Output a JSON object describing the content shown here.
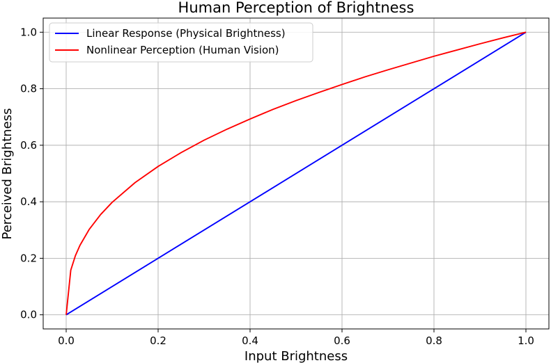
{
  "chart_data": {
    "type": "line",
    "title": "Human Perception of Brightness",
    "xlabel": "Input Brightness",
    "ylabel": "Perceived Brightness",
    "xlim": [
      -0.05,
      1.05
    ],
    "ylim": [
      -0.05,
      1.05
    ],
    "xticks": [
      0.0,
      0.2,
      0.4,
      0.6,
      0.8,
      1.0
    ],
    "yticks": [
      0.0,
      0.2,
      0.4,
      0.6,
      0.8,
      1.0
    ],
    "xtick_labels": [
      "0.0",
      "0.2",
      "0.4",
      "0.6",
      "0.8",
      "1.0"
    ],
    "ytick_labels": [
      "0.0",
      "0.2",
      "0.4",
      "0.6",
      "0.8",
      "1.0"
    ],
    "grid": true,
    "legend_position": "top-left",
    "series": [
      {
        "name": "Linear Response (Physical Brightness)",
        "color": "#0000ff",
        "x": [
          0.0,
          1.0
        ],
        "y": [
          0.0,
          1.0
        ]
      },
      {
        "name": "Nonlinear Perception (Human Vision)",
        "color": "#ff0000",
        "x": [
          0.0,
          0.01,
          0.02,
          0.03,
          0.05,
          0.075,
          0.1,
          0.15,
          0.2,
          0.25,
          0.3,
          0.35,
          0.4,
          0.45,
          0.5,
          0.55,
          0.6,
          0.65,
          0.7,
          0.75,
          0.8,
          0.85,
          0.9,
          0.95,
          1.0
        ],
        "y": [
          0.0,
          0.158,
          0.209,
          0.246,
          0.302,
          0.355,
          0.398,
          0.468,
          0.525,
          0.574,
          0.618,
          0.657,
          0.693,
          0.727,
          0.758,
          0.787,
          0.815,
          0.842,
          0.867,
          0.891,
          0.915,
          0.937,
          0.959,
          0.98,
          1.0
        ]
      }
    ]
  }
}
